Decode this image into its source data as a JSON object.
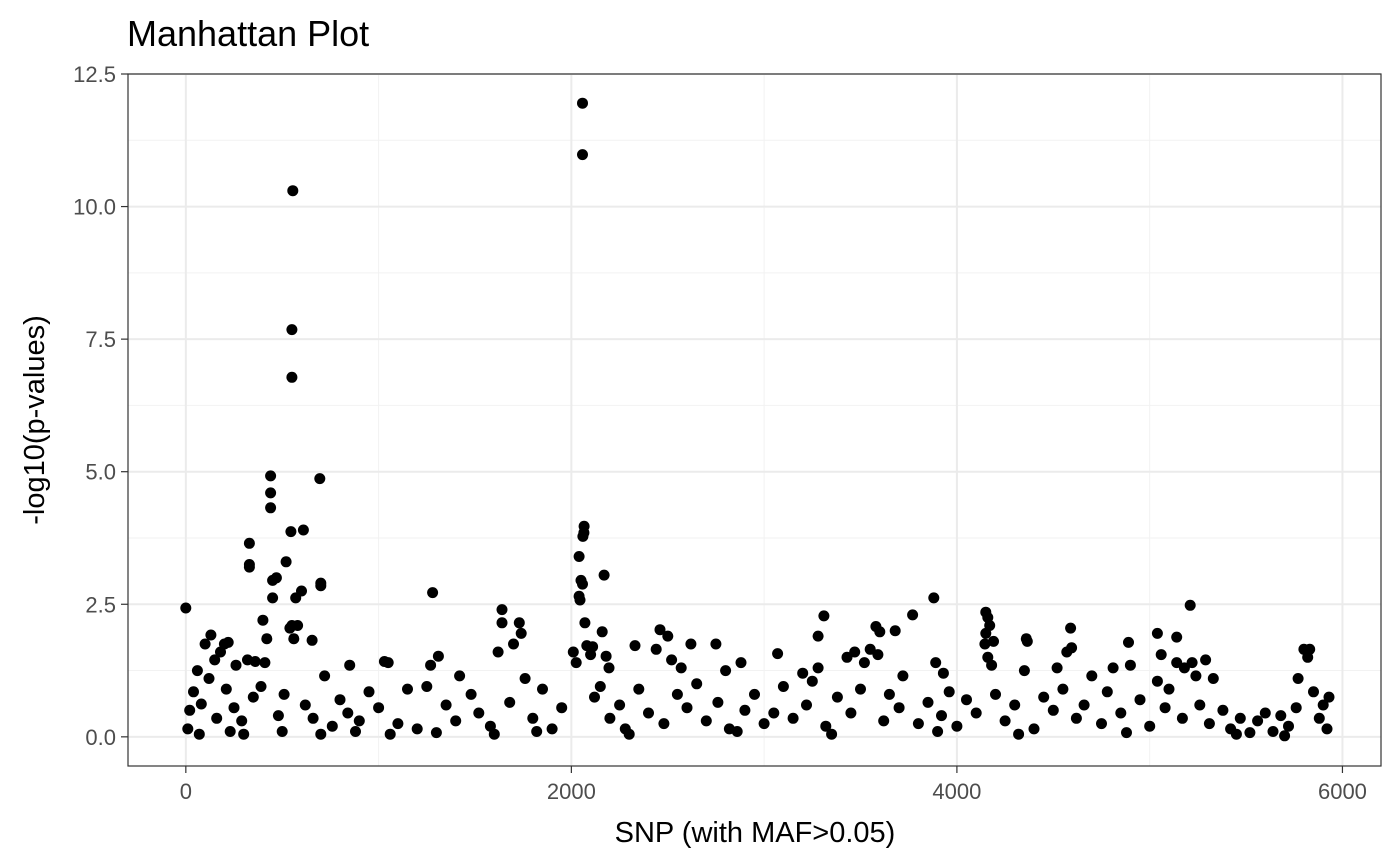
{
  "chart_data": {
    "type": "scatter",
    "title": "Manhattan Plot",
    "xlabel": "SNP (with MAF>0.05)",
    "ylabel": "-log10(p-values)",
    "xlim": [
      -300,
      6200
    ],
    "ylim": [
      -0.55,
      12.5
    ],
    "xticks": [
      0,
      2000,
      4000,
      6000
    ],
    "xtick_labels": [
      "0",
      "2000",
      "4000",
      "6000"
    ],
    "yticks": [
      0,
      2.5,
      5,
      7.5,
      10,
      12.5
    ],
    "ytick_labels": [
      "0.0",
      "2.5",
      "5.0",
      "7.5",
      "10.0",
      "12.5"
    ],
    "grid": true,
    "point_color": "#000000",
    "series": [
      {
        "values": [
          [
            0,
            2.43
          ],
          [
            2058,
            11.95
          ],
          [
            2058,
            10.98
          ],
          [
            555,
            10.3
          ],
          [
            550,
            7.68
          ],
          [
            550,
            6.78
          ],
          [
            440,
            4.92
          ],
          [
            440,
            4.6
          ],
          [
            440,
            4.32
          ],
          [
            695,
            4.87
          ],
          [
            545,
            3.87
          ],
          [
            610,
            3.9
          ],
          [
            330,
            3.65
          ],
          [
            330,
            3.25
          ],
          [
            330,
            3.2
          ],
          [
            520,
            3.3
          ],
          [
            450,
            2.95
          ],
          [
            470,
            3.0
          ],
          [
            700,
            2.9
          ],
          [
            700,
            2.85
          ],
          [
            600,
            2.75
          ],
          [
            570,
            2.62
          ],
          [
            450,
            2.62
          ],
          [
            400,
            2.2
          ],
          [
            550,
            2.1
          ],
          [
            540,
            2.05
          ],
          [
            580,
            2.1
          ],
          [
            560,
            1.85
          ],
          [
            655,
            1.82
          ],
          [
            420,
            1.85
          ],
          [
            130,
            1.92
          ],
          [
            100,
            1.75
          ],
          [
            200,
            1.75
          ],
          [
            220,
            1.78
          ],
          [
            180,
            1.6
          ],
          [
            320,
            1.45
          ],
          [
            360,
            1.42
          ],
          [
            410,
            1.4
          ],
          [
            260,
            1.35
          ],
          [
            150,
            1.45
          ],
          [
            60,
            1.25
          ],
          [
            850,
            1.35
          ],
          [
            1030,
            1.42
          ],
          [
            1050,
            1.4
          ],
          [
            1310,
            1.52
          ],
          [
            1280,
            2.72
          ],
          [
            1270,
            1.35
          ],
          [
            1640,
            2.4
          ],
          [
            1640,
            2.15
          ],
          [
            1730,
            2.15
          ],
          [
            1740,
            1.95
          ],
          [
            1700,
            1.75
          ],
          [
            1620,
            1.6
          ],
          [
            1420,
            1.15
          ],
          [
            2010,
            1.6
          ],
          [
            2025,
            1.4
          ],
          [
            2040,
            3.4
          ],
          [
            2040,
            2.65
          ],
          [
            2045,
            2.58
          ],
          [
            2050,
            2.95
          ],
          [
            2058,
            2.88
          ],
          [
            2060,
            3.78
          ],
          [
            2065,
            3.85
          ],
          [
            2066,
            3.97
          ],
          [
            2070,
            2.15
          ],
          [
            2080,
            1.72
          ],
          [
            2110,
            1.7
          ],
          [
            2100,
            1.55
          ],
          [
            2160,
            1.98
          ],
          [
            2170,
            3.05
          ],
          [
            2180,
            1.52
          ],
          [
            2195,
            1.3
          ],
          [
            2330,
            1.72
          ],
          [
            2440,
            1.65
          ],
          [
            2460,
            2.02
          ],
          [
            2500,
            1.9
          ],
          [
            2520,
            1.45
          ],
          [
            2570,
            1.3
          ],
          [
            2620,
            1.75
          ],
          [
            2750,
            1.75
          ],
          [
            2800,
            1.25
          ],
          [
            2880,
            1.4
          ],
          [
            3070,
            1.57
          ],
          [
            3280,
            1.9
          ],
          [
            3310,
            2.28
          ],
          [
            3280,
            1.3
          ],
          [
            3200,
            1.2
          ],
          [
            3430,
            1.5
          ],
          [
            3470,
            1.6
          ],
          [
            3520,
            1.4
          ],
          [
            3580,
            2.08
          ],
          [
            3600,
            1.98
          ],
          [
            3550,
            1.65
          ],
          [
            3590,
            1.55
          ],
          [
            3680,
            2.0
          ],
          [
            3770,
            2.3
          ],
          [
            3880,
            2.62
          ],
          [
            3890,
            1.4
          ],
          [
            3930,
            1.2
          ],
          [
            4150,
            2.35
          ],
          [
            4160,
            2.25
          ],
          [
            4170,
            2.1
          ],
          [
            4150,
            1.95
          ],
          [
            4145,
            1.75
          ],
          [
            4160,
            1.5
          ],
          [
            4190,
            1.8
          ],
          [
            4180,
            1.35
          ],
          [
            4360,
            1.85
          ],
          [
            4365,
            1.8
          ],
          [
            4350,
            1.25
          ],
          [
            4590,
            2.05
          ],
          [
            4595,
            1.68
          ],
          [
            4570,
            1.6
          ],
          [
            4520,
            1.3
          ],
          [
            4700,
            1.15
          ],
          [
            4890,
            1.78
          ],
          [
            4900,
            1.35
          ],
          [
            4810,
            1.3
          ],
          [
            5040,
            1.95
          ],
          [
            5060,
            1.55
          ],
          [
            5040,
            1.05
          ],
          [
            5140,
            1.88
          ],
          [
            5210,
            2.48
          ],
          [
            5140,
            1.4
          ],
          [
            5180,
            1.3
          ],
          [
            5220,
            1.4
          ],
          [
            5290,
            1.45
          ],
          [
            5240,
            1.15
          ],
          [
            5330,
            1.1
          ],
          [
            5770,
            1.1
          ],
          [
            5800,
            1.65
          ],
          [
            5830,
            1.65
          ],
          [
            5820,
            1.5
          ],
          [
            20,
            0.5
          ],
          [
            40,
            0.85
          ],
          [
            80,
            0.62
          ],
          [
            120,
            1.1
          ],
          [
            160,
            0.35
          ],
          [
            210,
            0.9
          ],
          [
            250,
            0.55
          ],
          [
            290,
            0.3
          ],
          [
            350,
            0.75
          ],
          [
            390,
            0.95
          ],
          [
            480,
            0.4
          ],
          [
            510,
            0.8
          ],
          [
            620,
            0.6
          ],
          [
            660,
            0.35
          ],
          [
            720,
            1.15
          ],
          [
            760,
            0.2
          ],
          [
            800,
            0.7
          ],
          [
            840,
            0.45
          ],
          [
            900,
            0.3
          ],
          [
            950,
            0.85
          ],
          [
            1000,
            0.55
          ],
          [
            1100,
            0.25
          ],
          [
            1150,
            0.9
          ],
          [
            1200,
            0.15
          ],
          [
            1250,
            0.95
          ],
          [
            1350,
            0.6
          ],
          [
            1400,
            0.3
          ],
          [
            1480,
            0.8
          ],
          [
            1520,
            0.45
          ],
          [
            1580,
            0.2
          ],
          [
            1680,
            0.65
          ],
          [
            1760,
            1.1
          ],
          [
            1800,
            0.35
          ],
          [
            1850,
            0.9
          ],
          [
            1900,
            0.15
          ],
          [
            1950,
            0.55
          ],
          [
            2120,
            0.75
          ],
          [
            2150,
            0.95
          ],
          [
            2200,
            0.35
          ],
          [
            2250,
            0.6
          ],
          [
            2280,
            0.15
          ],
          [
            2350,
            0.9
          ],
          [
            2400,
            0.45
          ],
          [
            2480,
            0.25
          ],
          [
            2550,
            0.8
          ],
          [
            2600,
            0.55
          ],
          [
            2650,
            1.0
          ],
          [
            2700,
            0.3
          ],
          [
            2760,
            0.65
          ],
          [
            2820,
            0.15
          ],
          [
            2900,
            0.5
          ],
          [
            2950,
            0.8
          ],
          [
            3000,
            0.25
          ],
          [
            3050,
            0.45
          ],
          [
            3100,
            0.95
          ],
          [
            3150,
            0.35
          ],
          [
            3220,
            0.6
          ],
          [
            3250,
            1.05
          ],
          [
            3320,
            0.2
          ],
          [
            3380,
            0.75
          ],
          [
            3450,
            0.45
          ],
          [
            3500,
            0.9
          ],
          [
            3620,
            0.3
          ],
          [
            3650,
            0.8
          ],
          [
            3700,
            0.55
          ],
          [
            3720,
            1.15
          ],
          [
            3800,
            0.25
          ],
          [
            3850,
            0.65
          ],
          [
            3920,
            0.4
          ],
          [
            3960,
            0.85
          ],
          [
            4000,
            0.2
          ],
          [
            4050,
            0.7
          ],
          [
            4100,
            0.45
          ],
          [
            4200,
            0.8
          ],
          [
            4250,
            0.3
          ],
          [
            4300,
            0.6
          ],
          [
            4400,
            0.15
          ],
          [
            4450,
            0.75
          ],
          [
            4500,
            0.5
          ],
          [
            4550,
            0.9
          ],
          [
            4620,
            0.35
          ],
          [
            4660,
            0.6
          ],
          [
            4750,
            0.25
          ],
          [
            4780,
            0.85
          ],
          [
            4850,
            0.45
          ],
          [
            4950,
            0.7
          ],
          [
            5000,
            0.2
          ],
          [
            5080,
            0.55
          ],
          [
            5100,
            0.9
          ],
          [
            5170,
            0.35
          ],
          [
            5260,
            0.6
          ],
          [
            5310,
            0.25
          ],
          [
            5380,
            0.5
          ],
          [
            5420,
            0.15
          ],
          [
            5470,
            0.35
          ],
          [
            5520,
            0.08
          ],
          [
            5560,
            0.3
          ],
          [
            5600,
            0.45
          ],
          [
            5640,
            0.1
          ],
          [
            5680,
            0.4
          ],
          [
            5720,
            0.2
          ],
          [
            5760,
            0.55
          ],
          [
            5850,
            0.85
          ],
          [
            5880,
            0.35
          ],
          [
            5900,
            0.6
          ],
          [
            5920,
            0.15
          ],
          [
            5930,
            0.75
          ],
          [
            10,
            0.15
          ],
          [
            70,
            0.05
          ],
          [
            230,
            0.1
          ],
          [
            300,
            0.05
          ],
          [
            500,
            0.1
          ],
          [
            700,
            0.05
          ],
          [
            880,
            0.1
          ],
          [
            1060,
            0.05
          ],
          [
            1300,
            0.08
          ],
          [
            1600,
            0.05
          ],
          [
            1820,
            0.1
          ],
          [
            2300,
            0.05
          ],
          [
            2860,
            0.1
          ],
          [
            3350,
            0.05
          ],
          [
            3900,
            0.1
          ],
          [
            4320,
            0.05
          ],
          [
            4880,
            0.08
          ],
          [
            5450,
            0.05
          ],
          [
            5700,
            0.02
          ]
        ]
      }
    ]
  }
}
